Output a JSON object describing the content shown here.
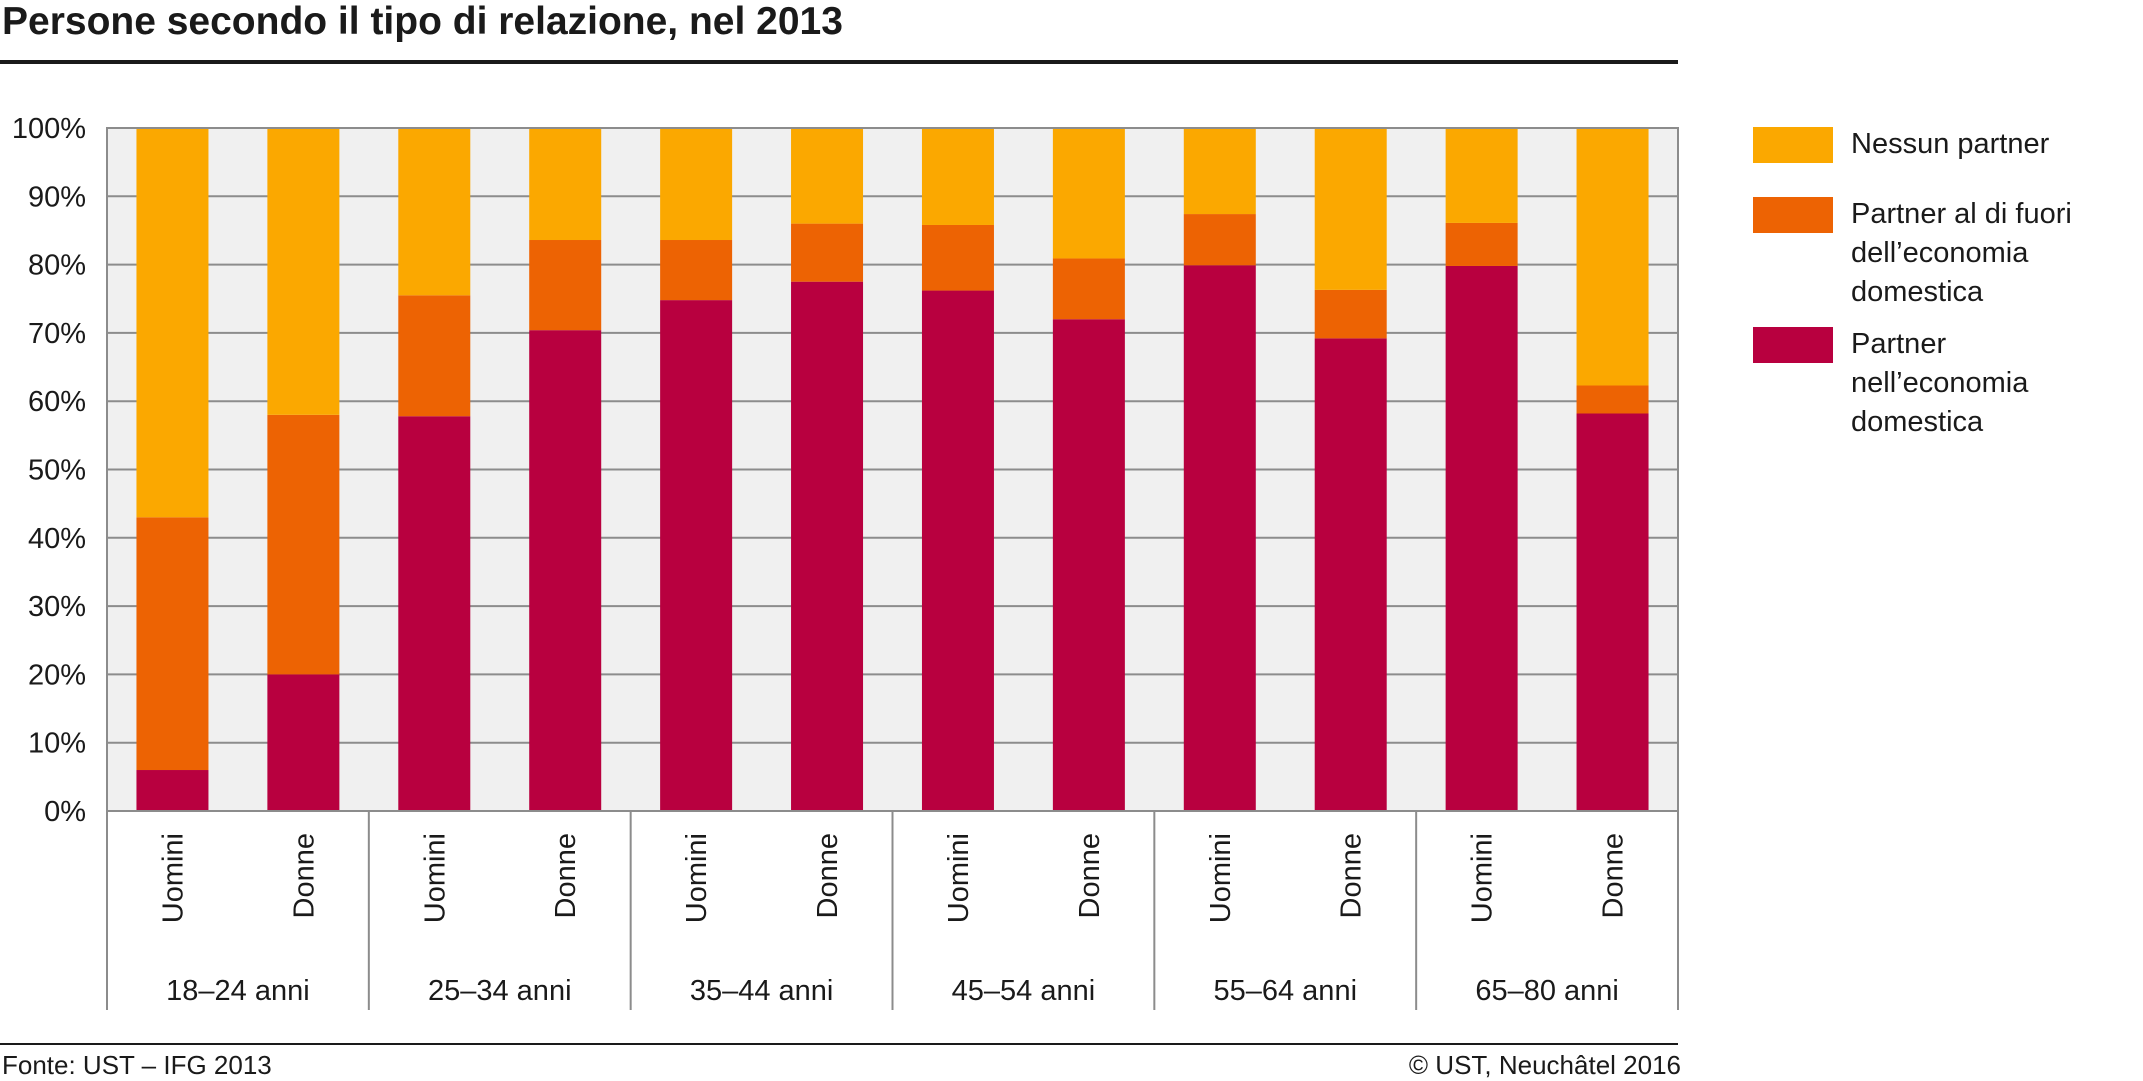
{
  "title": "Persone secondo il tipo di relazione, nel 2013",
  "footer": {
    "source": "Fonte: UST – IFG 2013",
    "copyright": "© UST, Neuchâtel 2016"
  },
  "colors": {
    "nessun_partner": "#FBA800",
    "partner_fuori": "#ED6303",
    "partner_nell": "#B8003F",
    "plot_background": "#F0F0F0",
    "grid": "#8C8C8C"
  },
  "legend": [
    {
      "label": "Nessun partner",
      "color": "#FBA800"
    },
    {
      "label": "Partner al di fuori dell’economia domestica",
      "color": "#ED6303"
    },
    {
      "label": "Partner nell’economia domestica",
      "color": "#B8003F"
    }
  ],
  "chart_data": {
    "type": "bar",
    "stacked": true,
    "title": "Persone secondo il tipo di relazione, nel 2013",
    "ylim": [
      0,
      100
    ],
    "yticks": [
      "0%",
      "10%",
      "20%",
      "30%",
      "40%",
      "50%",
      "60%",
      "70%",
      "80%",
      "90%",
      "100%"
    ],
    "groups": [
      "18–24 anni",
      "25–34 anni",
      "35–44 anni",
      "45–54 anni",
      "55–64 anni",
      "65–80 anni"
    ],
    "categories": [
      "Uomini",
      "Donne",
      "Uomini",
      "Donne",
      "Uomini",
      "Donne",
      "Uomini",
      "Donne",
      "Uomini",
      "Donne",
      "Uomini",
      "Donne"
    ],
    "series": [
      {
        "name": "Partner nell’economia domestica",
        "values": [
          6,
          20,
          57.8,
          70.4,
          74.8,
          77.5,
          76.2,
          72,
          79.9,
          69.2,
          79.8,
          58.2
        ]
      },
      {
        "name": "Partner al di fuori dell’economia domestica",
        "values": [
          37,
          38,
          17.7,
          13.2,
          8.8,
          8.5,
          9.6,
          8.9,
          7.5,
          7.1,
          6.3,
          4.1
        ]
      },
      {
        "name": "Nessun partner",
        "values": [
          57,
          42,
          24.5,
          16.4,
          16.4,
          14,
          14.2,
          19.1,
          12.6,
          23.7,
          13.9,
          37.7
        ]
      }
    ],
    "grid": true,
    "legend_position": "right"
  }
}
